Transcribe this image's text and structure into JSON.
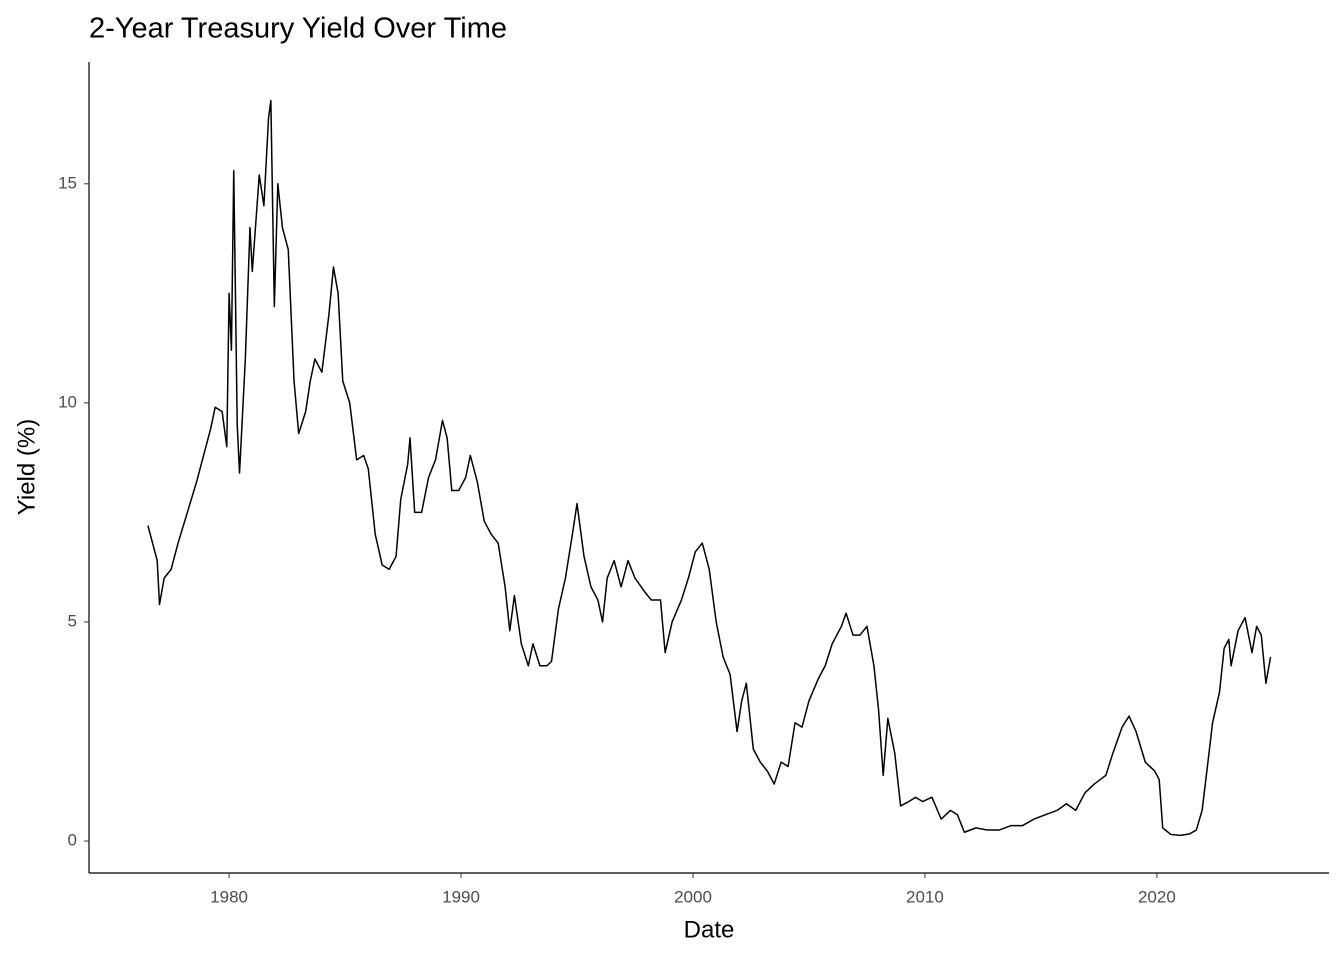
{
  "chart_data": {
    "type": "line",
    "title": "2-Year Treasury Yield Over Time",
    "x_label": "Date",
    "y_label": "Yield (%)",
    "color": "#000000",
    "x": [
      1976.5,
      1976.9,
      1977.0,
      1977.2,
      1977.5,
      1977.8,
      1978.2,
      1978.6,
      1978.9,
      1979.2,
      1979.4,
      1979.7,
      1979.9,
      1980.0,
      1980.1,
      1980.2,
      1980.35,
      1980.45,
      1980.7,
      1980.9,
      1981.0,
      1981.3,
      1981.5,
      1981.7,
      1981.8,
      1981.95,
      1982.1,
      1982.3,
      1982.55,
      1982.8,
      1983.0,
      1983.3,
      1983.5,
      1983.7,
      1984.0,
      1984.3,
      1984.5,
      1984.7,
      1984.9,
      1985.2,
      1985.5,
      1985.8,
      1986.0,
      1986.3,
      1986.6,
      1986.9,
      1987.2,
      1987.4,
      1987.7,
      1987.8,
      1988.0,
      1988.3,
      1988.6,
      1988.9,
      1989.2,
      1989.4,
      1989.6,
      1989.9,
      1990.2,
      1990.4,
      1990.7,
      1991.0,
      1991.3,
      1991.6,
      1991.9,
      1992.1,
      1992.3,
      1992.6,
      1992.9,
      1993.1,
      1993.4,
      1993.7,
      1993.9,
      1994.2,
      1994.5,
      1994.8,
      1995.0,
      1995.3,
      1995.6,
      1995.9,
      1996.1,
      1996.3,
      1996.6,
      1996.9,
      1997.2,
      1997.5,
      1997.9,
      1998.2,
      1998.6,
      1998.8,
      1999.1,
      1999.5,
      1999.8,
      2000.1,
      2000.4,
      2000.7,
      2001.0,
      2001.3,
      2001.6,
      2001.9,
      2002.1,
      2002.3,
      2002.6,
      2002.9,
      2003.2,
      2003.5,
      2003.8,
      2004.1,
      2004.4,
      2004.7,
      2005.0,
      2005.4,
      2005.7,
      2006.0,
      2006.4,
      2006.6,
      2006.9,
      2007.2,
      2007.5,
      2007.8,
      2008.0,
      2008.2,
      2008.4,
      2008.7,
      2008.95,
      2009.3,
      2009.6,
      2009.9,
      2010.3,
      2010.7,
      2011.1,
      2011.4,
      2011.7,
      2012.2,
      2012.7,
      2013.2,
      2013.7,
      2014.2,
      2014.7,
      2015.2,
      2015.7,
      2016.1,
      2016.5,
      2016.9,
      2017.3,
      2017.8,
      2018.1,
      2018.5,
      2018.8,
      2019.1,
      2019.5,
      2019.9,
      2020.1,
      2020.25,
      2020.6,
      2021.0,
      2021.4,
      2021.7,
      2021.95,
      2022.2,
      2022.4,
      2022.7,
      2022.9,
      2023.1,
      2023.2,
      2023.5,
      2023.8,
      2024.1,
      2024.3,
      2024.5,
      2024.7,
      2024.9
    ],
    "values": [
      7.2,
      6.4,
      5.4,
      6.0,
      6.2,
      6.8,
      7.5,
      8.2,
      8.8,
      9.4,
      9.9,
      9.8,
      9.0,
      12.5,
      11.2,
      15.3,
      9.5,
      8.4,
      11.0,
      14.0,
      13.0,
      15.2,
      14.5,
      16.5,
      16.9,
      12.2,
      15.0,
      14.0,
      13.5,
      10.5,
      9.3,
      9.8,
      10.5,
      11.0,
      10.7,
      12.0,
      13.1,
      12.5,
      10.5,
      10.0,
      8.7,
      8.8,
      8.5,
      7.0,
      6.3,
      6.2,
      6.5,
      7.8,
      8.6,
      9.2,
      7.5,
      7.5,
      8.3,
      8.7,
      9.6,
      9.2,
      8.0,
      8.0,
      8.3,
      8.8,
      8.2,
      7.3,
      7.0,
      6.8,
      5.8,
      4.8,
      5.6,
      4.5,
      4.0,
      4.5,
      4.0,
      4.0,
      4.1,
      5.3,
      6.0,
      7.0,
      7.7,
      6.5,
      5.8,
      5.5,
      5.0,
      6.0,
      6.4,
      5.8,
      6.4,
      6.0,
      5.7,
      5.5,
      5.5,
      4.3,
      5.0,
      5.5,
      6.0,
      6.6,
      6.8,
      6.2,
      5.0,
      4.2,
      3.8,
      2.5,
      3.2,
      3.6,
      2.1,
      1.8,
      1.6,
      1.3,
      1.8,
      1.7,
      2.7,
      2.6,
      3.2,
      3.7,
      4.0,
      4.5,
      4.9,
      5.2,
      4.7,
      4.7,
      4.9,
      4.0,
      3.0,
      1.5,
      2.8,
      2.0,
      0.8,
      0.9,
      1.0,
      0.9,
      1.0,
      0.5,
      0.7,
      0.6,
      0.2,
      0.3,
      0.25,
      0.25,
      0.35,
      0.35,
      0.5,
      0.6,
      0.7,
      0.85,
      0.7,
      1.1,
      1.3,
      1.5,
      2.0,
      2.6,
      2.85,
      2.5,
      1.8,
      1.6,
      1.4,
      0.3,
      0.15,
      0.13,
      0.16,
      0.25,
      0.7,
      1.8,
      2.7,
      3.4,
      4.4,
      4.6,
      4.0,
      4.8,
      5.1,
      4.3,
      4.9,
      4.7,
      3.6,
      4.2
    ],
    "xlim": [
      1973.96,
      2027.42
    ],
    "xticks": [
      1980,
      1990,
      2000,
      2010,
      2020
    ],
    "ylim": [
      -0.73,
      17.78
    ],
    "yticks": [
      0,
      5,
      10,
      15
    ]
  }
}
